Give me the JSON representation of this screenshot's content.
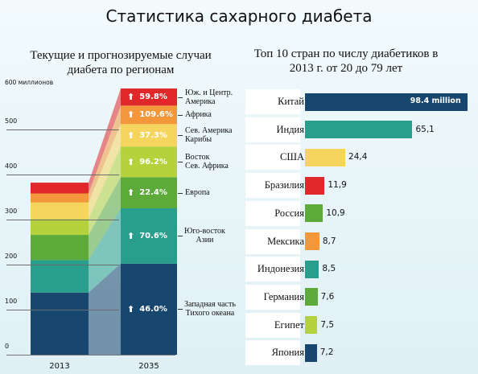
{
  "title": "Статистика сахарного диабета",
  "left_chart": {
    "title": "Текущие и прогнозируемые случаи диабета по регионам",
    "y_unit_label": "600 миллионов",
    "y_ticks": [
      "0",
      "100",
      "200",
      "300",
      "400",
      "500"
    ],
    "categories": [
      "2013",
      "2035"
    ]
  },
  "right_chart": {
    "title": "Топ 10 стран по числу диабетиков в 2013 г. от 20 до 79 лет"
  },
  "chart_data": [
    {
      "type": "bar",
      "stacked": true,
      "title": "Текущие и прогнозируемые случаи диабета по регионам",
      "categories": [
        "2013",
        "2035"
      ],
      "ylim": [
        0,
        600
      ],
      "y_unit": "миллионов",
      "series": [
        {
          "name": "Западная часть Тихого океана",
          "values": [
            138,
            202
          ],
          "growth_label": "46.0%",
          "color": "#17466e"
        },
        {
          "name": "Юго-восток Азии",
          "values": [
            72,
            123
          ],
          "growth_label": "70.6%",
          "color": "#2a9e8c"
        },
        {
          "name": "Европа",
          "values": [
            56,
            69
          ],
          "growth_label": "22.4%",
          "color": "#5daa3a"
        },
        {
          "name": "Восток Сев. Африка",
          "values": [
            35,
            68
          ],
          "growth_label": "96.2%",
          "color": "#b5d13b"
        },
        {
          "name": "Сев. Америка Карибы",
          "values": [
            37,
            50
          ],
          "growth_label": "37.3%",
          "color": "#f5d55e"
        },
        {
          "name": "Африка",
          "values": [
            20,
            41
          ],
          "growth_label": "109.6%",
          "color": "#f2973a"
        },
        {
          "name": "Юж. и Центр. Америка",
          "values": [
            24,
            38
          ],
          "growth_label": "59.8%",
          "color": "#e0282a"
        }
      ]
    },
    {
      "type": "bar",
      "orientation": "horizontal",
      "title": "Топ 10 стран по числу диабетиков в 2013 г. от 20 до 79 лет",
      "categories": [
        "Китай",
        "Индия",
        "США",
        "Бразилия",
        "Россия",
        "Мексика",
        "Индонезия",
        "Германия",
        "Египет",
        "Япония"
      ],
      "values": [
        98.4,
        65.1,
        24.4,
        11.9,
        10.9,
        8.7,
        8.5,
        7.6,
        7.5,
        7.2
      ],
      "value_labels": [
        "98.4 million",
        "65,1",
        "24,4",
        "11,9",
        "10,9",
        "8,7",
        "8,5",
        "7,6",
        "7,5",
        "7,2"
      ],
      "colors": [
        "#17466e",
        "#2a9e8c",
        "#f5d55e",
        "#e0282a",
        "#5daa3a",
        "#f2973a",
        "#2a9e8c",
        "#5daa3a",
        "#b5d13b",
        "#17466e"
      ]
    }
  ]
}
